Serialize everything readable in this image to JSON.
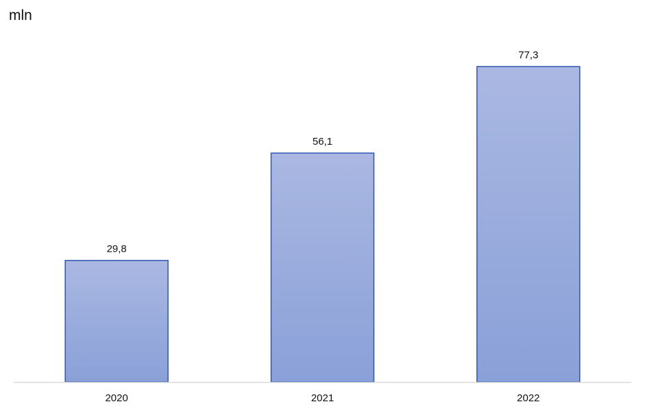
{
  "chart_data": {
    "type": "bar",
    "unit_label": "mln",
    "categories": [
      "2020",
      "2021",
      "2022"
    ],
    "values": [
      29.8,
      56.1,
      77.3
    ],
    "data_labels": [
      "29,8",
      "56,1",
      "77,3"
    ],
    "ylim": [
      0,
      77.3
    ],
    "grid": false,
    "legend": "none",
    "colors": {
      "bar_top": "#aab8e2",
      "bar_bottom": "#8aa0d8",
      "bar_border": "#2f55b3",
      "axis": "#d9d9d9",
      "text": "#111111"
    }
  }
}
